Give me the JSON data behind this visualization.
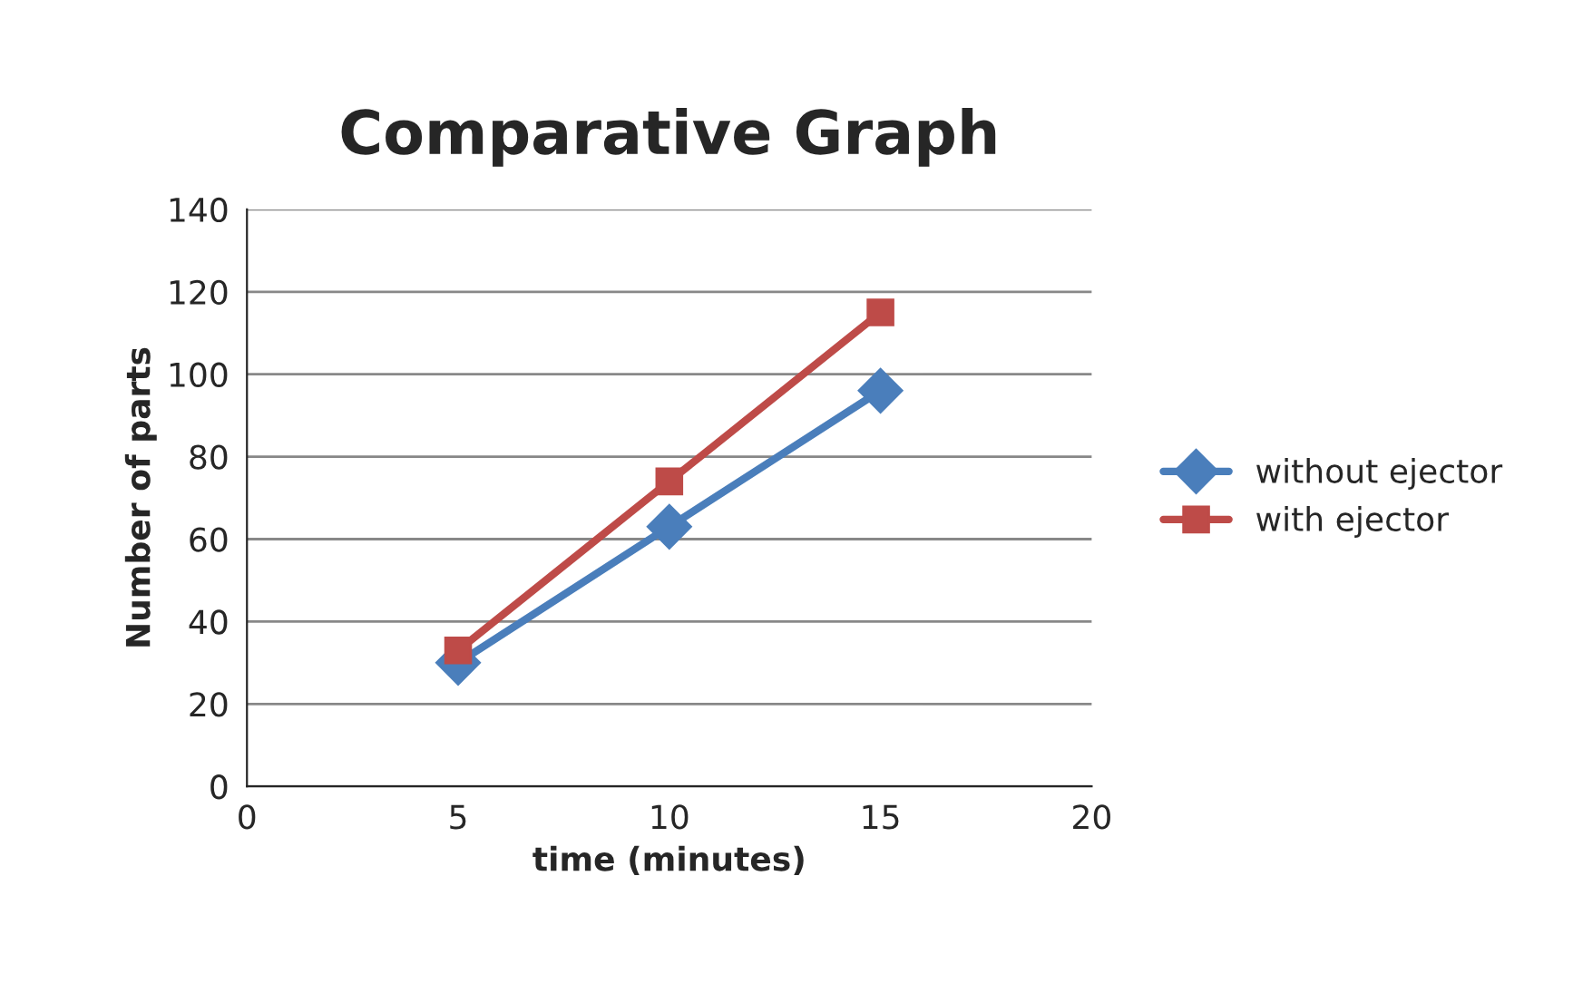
{
  "chart_data": {
    "type": "line",
    "title": "Comparative Graph",
    "xlabel": "time (minutes)",
    "ylabel": "Number of parts",
    "x": [
      5,
      10,
      15
    ],
    "series": [
      {
        "name": "without ejector",
        "color": "#4a7ebb",
        "marker": "diamond",
        "values": [
          30,
          63,
          96
        ]
      },
      {
        "name": "with ejector",
        "color": "#be4b48",
        "marker": "square",
        "values": [
          33,
          74,
          115
        ]
      }
    ],
    "xlim": [
      0,
      20
    ],
    "xticks": [
      0,
      5,
      10,
      15,
      20
    ],
    "ylim": [
      0,
      140
    ],
    "yticks": [
      0,
      20,
      40,
      60,
      80,
      100,
      120,
      140
    ],
    "grid": "y",
    "legend": "right",
    "line_style": "solid"
  }
}
